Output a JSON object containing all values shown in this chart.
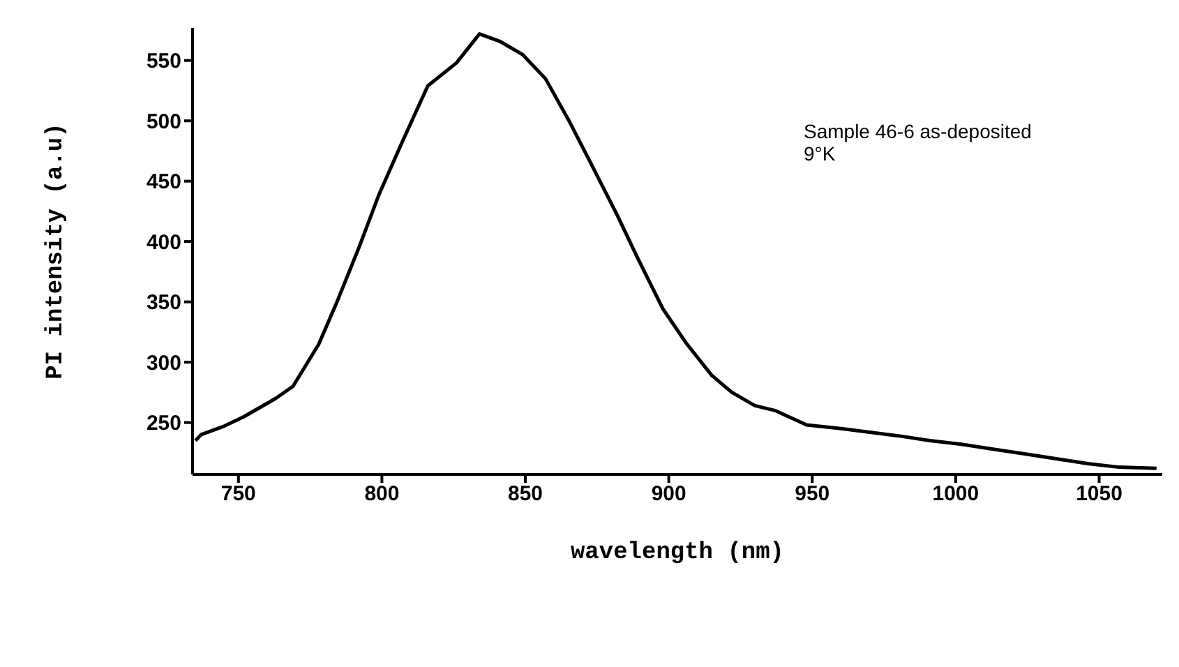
{
  "chart_data": {
    "type": "line",
    "xlabel": "wavelength (nm)",
    "ylabel": "PI intensity (a.u)",
    "annotations": [
      "Sample 46-6 as-deposited",
      "9°K"
    ],
    "xlim": [
      734,
      1072
    ],
    "xticks": [
      750,
      800,
      850,
      900,
      950,
      1000,
      1050
    ],
    "ylim": [
      207,
      577
    ],
    "yticks": [
      250,
      300,
      350,
      400,
      450,
      500,
      550
    ],
    "grid": false,
    "legend": false,
    "marker": "none",
    "line_style": "solid",
    "series": [
      {
        "color": "#000000",
        "x": [
          735,
          737,
          745,
          752,
          763,
          769,
          778,
          784,
          792,
          799,
          807,
          816,
          826,
          834,
          841,
          849,
          857,
          865,
          873,
          882,
          889,
          898,
          906,
          915,
          922,
          930,
          937,
          948,
          960,
          970,
          980,
          991,
          1002,
          1013,
          1024,
          1035,
          1046,
          1057,
          1070
        ],
        "values": [
          235,
          240,
          247,
          255,
          270,
          280,
          315,
          348,
          395,
          439,
          482,
          529,
          548,
          572,
          566,
          555,
          535,
          501,
          464,
          422,
          387,
          344,
          316,
          289,
          275,
          264,
          260,
          248,
          245,
          242,
          239,
          235,
          232,
          228,
          224,
          220,
          216,
          213,
          212
        ]
      }
    ]
  }
}
